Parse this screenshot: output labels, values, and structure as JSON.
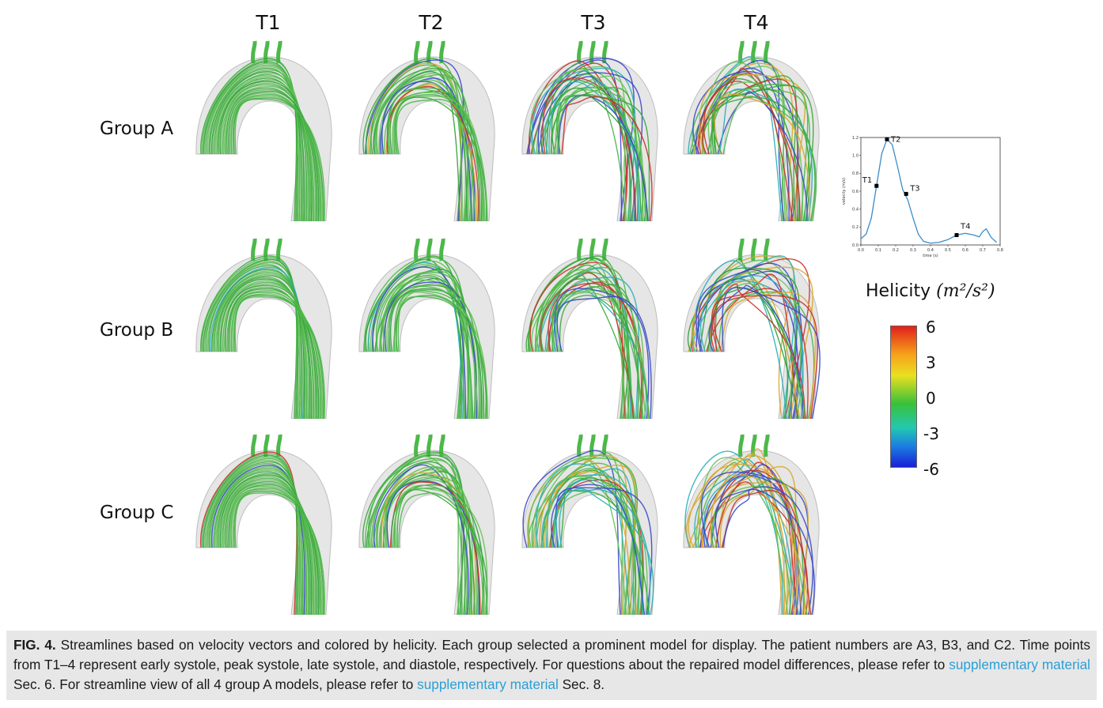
{
  "columns": [
    "T1",
    "T2",
    "T3",
    "T4"
  ],
  "rows": [
    "Group A",
    "Group B",
    "Group C"
  ],
  "colorbar": {
    "title_text": "Helicity ",
    "title_unit": "(m²/s²)",
    "ticks": [
      "6",
      "3",
      "0",
      "-3",
      "-6"
    ],
    "colors": {
      "max": "#e0201b",
      "mid": "#39c03a",
      "min": "#1820d8"
    }
  },
  "chart_data": {
    "type": "line",
    "title": "",
    "xlabel": "time (s)",
    "ylabel": "velocity (m/s)",
    "xlim": [
      0,
      0.8
    ],
    "ylim": [
      0,
      1.2
    ],
    "xticks": [
      "0.0",
      "0.1",
      "0.2",
      "0.3",
      "0.4",
      "0.5",
      "0.6",
      "0.7",
      "0.8"
    ],
    "yticks": [
      "0.0",
      "0.2",
      "0.4",
      "0.6",
      "0.8",
      "1.0",
      "1.2"
    ],
    "series": [
      {
        "x": [
          0.0,
          0.03,
          0.06,
          0.09,
          0.12,
          0.15,
          0.18,
          0.21,
          0.24,
          0.27,
          0.3,
          0.33,
          0.36,
          0.4,
          0.45,
          0.5,
          0.55,
          0.6,
          0.65,
          0.68,
          0.7,
          0.72,
          0.75,
          0.78
        ],
        "y": [
          0.07,
          0.12,
          0.3,
          0.66,
          1.02,
          1.18,
          1.12,
          0.88,
          0.62,
          0.5,
          0.3,
          0.12,
          0.04,
          0.02,
          0.03,
          0.06,
          0.11,
          0.13,
          0.11,
          0.09,
          0.15,
          0.18,
          0.08,
          0.03
        ],
        "color": "#3a8cc7"
      }
    ],
    "markers": [
      {
        "label": "T1",
        "x": 0.09,
        "y": 0.66
      },
      {
        "label": "T2",
        "x": 0.15,
        "y": 1.18
      },
      {
        "label": "T3",
        "x": 0.26,
        "y": 0.57
      },
      {
        "label": "T4",
        "x": 0.55,
        "y": 0.11
      }
    ]
  },
  "caption": {
    "label": "FIG. 4.",
    "text1": " Streamlines based on velocity vectors and colored by helicity. Each group selected a prominent model for display. The patient numbers are A3, B3, and C2. Time points from T1–4 represent early systole, peak systole, late systole, and diastole, respectively. For questions about the repaired model differences, please refer to ",
    "link1": "supplementary material",
    "text2": " Sec. 6. For streamline view of all 4 group A models, please refer to ",
    "link2": "supplementary material",
    "text3": " Sec. 8."
  }
}
